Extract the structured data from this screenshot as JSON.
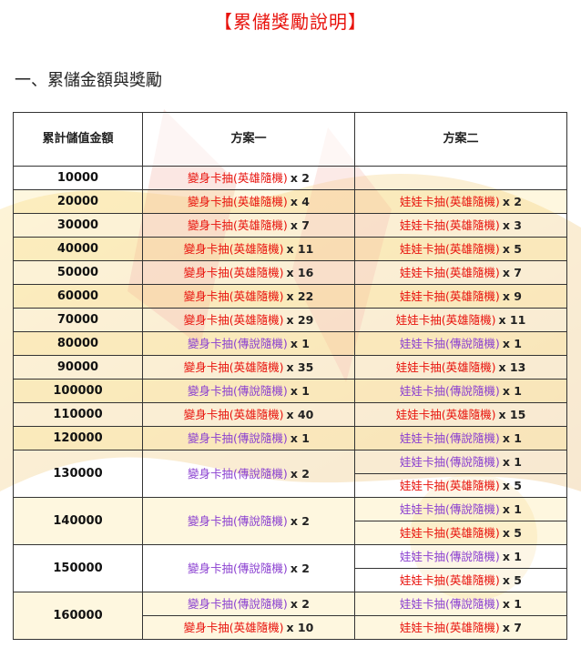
{
  "page": {
    "title": "【累儲獎勵說明】",
    "section_heading": "一、累儲金額與獎勵"
  },
  "colors": {
    "title": "#e8120c",
    "hero_item": "#e8120c",
    "legend_item": "#8a3fd0"
  },
  "table": {
    "headers": [
      "累計儲值金額",
      "方案一",
      "方案二"
    ],
    "rows": [
      {
        "amount": "10000",
        "plan1": [
          {
            "name": "變身卡抽(英雄隨機)",
            "type": "hero",
            "qty": "x 2"
          }
        ],
        "plan2": []
      },
      {
        "amount": "20000",
        "plan1": [
          {
            "name": "變身卡抽(英雄隨機)",
            "type": "hero",
            "qty": "x 4"
          }
        ],
        "plan2": [
          {
            "name": "娃娃卡抽(英雄隨機)",
            "type": "hero",
            "qty": "x 2"
          }
        ]
      },
      {
        "amount": "30000",
        "plan1": [
          {
            "name": "變身卡抽(英雄隨機)",
            "type": "hero",
            "qty": "x 7"
          }
        ],
        "plan2": [
          {
            "name": "娃娃卡抽(英雄隨機)",
            "type": "hero",
            "qty": "x 3"
          }
        ]
      },
      {
        "amount": "40000",
        "plan1": [
          {
            "name": "變身卡抽(英雄隨機)",
            "type": "hero",
            "qty": "x 11"
          }
        ],
        "plan2": [
          {
            "name": "娃娃卡抽(英雄隨機)",
            "type": "hero",
            "qty": "x 5"
          }
        ]
      },
      {
        "amount": "50000",
        "plan1": [
          {
            "name": "變身卡抽(英雄隨機)",
            "type": "hero",
            "qty": "x 16"
          }
        ],
        "plan2": [
          {
            "name": "娃娃卡抽(英雄隨機)",
            "type": "hero",
            "qty": "x 7"
          }
        ]
      },
      {
        "amount": "60000",
        "plan1": [
          {
            "name": "變身卡抽(英雄隨機)",
            "type": "hero",
            "qty": "x 22"
          }
        ],
        "plan2": [
          {
            "name": "娃娃卡抽(英雄隨機)",
            "type": "hero",
            "qty": "x 9"
          }
        ]
      },
      {
        "amount": "70000",
        "plan1": [
          {
            "name": "變身卡抽(英雄隨機)",
            "type": "hero",
            "qty": "x 29"
          }
        ],
        "plan2": [
          {
            "name": "娃娃卡抽(英雄隨機)",
            "type": "hero",
            "qty": "x 11"
          }
        ]
      },
      {
        "amount": "80000",
        "plan1": [
          {
            "name": "變身卡抽(傳說隨機)",
            "type": "legend",
            "qty": "x 1"
          }
        ],
        "plan2": [
          {
            "name": "娃娃卡抽(傳說隨機)",
            "type": "legend",
            "qty": "x 1"
          }
        ]
      },
      {
        "amount": "90000",
        "plan1": [
          {
            "name": "變身卡抽(英雄隨機)",
            "type": "hero",
            "qty": "x 35"
          }
        ],
        "plan2": [
          {
            "name": "娃娃卡抽(英雄隨機)",
            "type": "hero",
            "qty": "x 13"
          }
        ]
      },
      {
        "amount": "100000",
        "plan1": [
          {
            "name": "變身卡抽(傳說隨機)",
            "type": "legend",
            "qty": "x 1"
          }
        ],
        "plan2": [
          {
            "name": "娃娃卡抽(傳說隨機)",
            "type": "legend",
            "qty": "x 1"
          }
        ]
      },
      {
        "amount": "110000",
        "plan1": [
          {
            "name": "變身卡抽(英雄隨機)",
            "type": "hero",
            "qty": "x 40"
          }
        ],
        "plan2": [
          {
            "name": "娃娃卡抽(英雄隨機)",
            "type": "hero",
            "qty": "x 15"
          }
        ]
      },
      {
        "amount": "120000",
        "plan1": [
          {
            "name": "變身卡抽(傳說隨機)",
            "type": "legend",
            "qty": "x 1"
          }
        ],
        "plan2": [
          {
            "name": "娃娃卡抽(傳說隨機)",
            "type": "legend",
            "qty": "x 1"
          }
        ]
      },
      {
        "amount": "130000",
        "plan1": [
          {
            "name": "變身卡抽(傳說隨機)",
            "type": "legend",
            "qty": "x 2"
          }
        ],
        "plan2": [
          {
            "name": "娃娃卡抽(傳說隨機)",
            "type": "legend",
            "qty": "x 1"
          },
          {
            "name": "娃娃卡抽(英雄隨機)",
            "type": "hero",
            "qty": "x 5"
          }
        ]
      },
      {
        "amount": "140000",
        "plan1": [
          {
            "name": "變身卡抽(傳說隨機)",
            "type": "legend",
            "qty": "x 2"
          }
        ],
        "plan2": [
          {
            "name": "娃娃卡抽(傳說隨機)",
            "type": "legend",
            "qty": "x 1"
          },
          {
            "name": "娃娃卡抽(英雄隨機)",
            "type": "hero",
            "qty": "x 5"
          }
        ]
      },
      {
        "amount": "150000",
        "plan1": [
          {
            "name": "變身卡抽(傳說隨機)",
            "type": "legend",
            "qty": "x 2"
          }
        ],
        "plan2": [
          {
            "name": "娃娃卡抽(傳說隨機)",
            "type": "legend",
            "qty": "x 1"
          },
          {
            "name": "娃娃卡抽(英雄隨機)",
            "type": "hero",
            "qty": "x 5"
          }
        ]
      },
      {
        "amount": "160000",
        "plan1": [
          {
            "name": "變身卡抽(傳說隨機)",
            "type": "legend",
            "qty": "x 2"
          },
          {
            "name": "變身卡抽(英雄隨機)",
            "type": "hero",
            "qty": "x 10"
          }
        ],
        "plan2": [
          {
            "name": "娃娃卡抽(傳說隨機)",
            "type": "legend",
            "qty": "x 1"
          },
          {
            "name": "娃娃卡抽(英雄隨機)",
            "type": "hero",
            "qty": "x 7"
          }
        ]
      }
    ]
  }
}
